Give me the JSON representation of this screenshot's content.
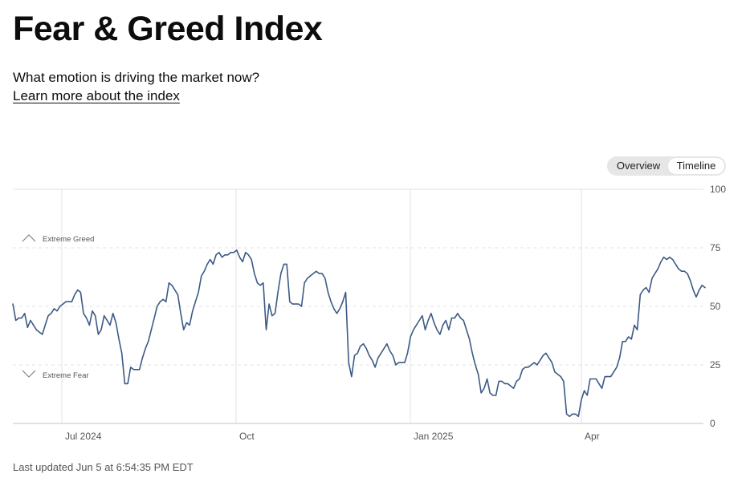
{
  "header": {
    "title": "Fear & Greed Index",
    "subtitle": "What emotion is driving the market now?",
    "learn_more": "Learn more about the index"
  },
  "toggle": {
    "overview": "Overview",
    "timeline": "Timeline"
  },
  "footer": {
    "last_updated": "Last updated Jun 5 at 6:54:35 PM EDT"
  },
  "colors": {
    "line": "#3c5a85",
    "grid": "#e3e3e3",
    "axis": "#cfcfcf",
    "text": "#555555"
  },
  "chart_data": {
    "type": "line",
    "title": "Fear & Greed Index Timeline",
    "ylim": [
      0,
      100
    ],
    "y_ticks": [
      "0",
      "25",
      "50",
      "75",
      "100"
    ],
    "x_ticks": [
      "Jul 2024",
      "Oct",
      "Jan 2025",
      "Apr"
    ],
    "zone_labels": {
      "greed": "Extreme Greed",
      "fear": "Extreme Fear"
    },
    "series": [
      {
        "name": "Fear & Greed Index",
        "values": [
          51,
          44,
          45,
          45,
          47,
          41,
          44,
          42,
          40,
          39,
          38,
          42,
          46,
          47,
          49,
          48,
          50,
          51,
          52,
          52,
          52,
          55,
          57,
          56,
          47,
          45,
          42,
          48,
          46,
          38,
          40,
          46,
          44,
          42,
          47,
          43,
          36,
          30,
          17,
          17,
          24,
          23,
          23,
          23,
          28,
          32,
          35,
          40,
          45,
          50,
          52,
          53,
          52,
          60,
          59,
          57,
          55,
          47,
          40,
          43,
          42,
          48,
          52,
          56,
          63,
          65,
          68,
          70,
          68,
          72,
          73,
          71,
          72,
          72,
          73,
          73,
          74,
          71,
          69,
          73,
          72,
          70,
          64,
          60,
          59,
          60,
          40,
          51,
          46,
          47,
          56,
          64,
          68,
          68,
          52,
          51,
          51,
          51,
          50,
          60,
          62,
          63,
          64,
          65,
          64,
          64,
          62,
          56,
          52,
          49,
          47,
          49,
          52,
          56,
          26,
          20,
          29,
          30,
          33,
          34,
          32,
          29,
          27,
          24,
          28,
          30,
          32,
          34,
          31,
          29,
          25,
          26,
          26,
          26,
          30,
          37,
          40,
          42,
          44,
          46,
          40,
          44,
          47,
          43,
          40,
          38,
          42,
          44,
          40,
          45,
          45,
          47,
          45,
          44,
          40,
          36,
          30,
          25,
          21,
          13,
          15,
          19,
          13,
          12,
          12,
          18,
          18,
          17,
          17,
          16,
          15,
          18,
          19,
          23,
          24,
          24,
          25,
          26,
          25,
          27,
          29,
          30,
          28,
          26,
          22,
          21,
          20,
          18,
          4,
          3,
          4,
          4,
          3,
          10,
          14,
          12,
          19,
          19,
          19,
          17,
          15,
          20,
          20,
          20,
          22,
          24,
          28,
          35,
          35,
          37,
          36,
          42,
          40,
          55,
          57,
          58,
          56,
          62,
          64,
          66,
          69,
          71,
          70,
          71,
          70,
          68,
          66,
          65,
          65,
          64,
          61,
          57,
          54,
          57,
          59,
          58
        ]
      }
    ]
  }
}
